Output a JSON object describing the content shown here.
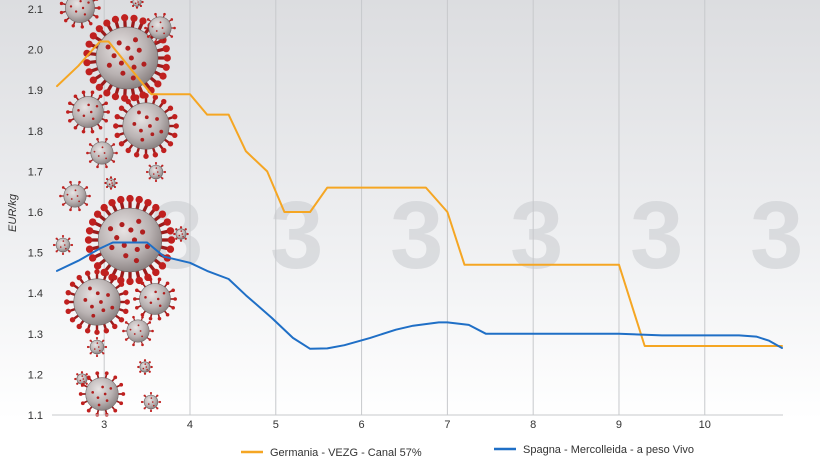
{
  "chart_data": {
    "type": "line",
    "title": "",
    "xlabel": "",
    "ylabel": "EUR/kg",
    "xlim": [
      2.45,
      10.9
    ],
    "ylim": [
      1.1,
      2.1
    ],
    "x_ticks": [
      3,
      4,
      5,
      6,
      7,
      8,
      9,
      10
    ],
    "y_ticks": [
      1.1,
      1.2,
      1.3,
      1.4,
      1.5,
      1.6,
      1.7,
      1.8,
      1.9,
      2.0,
      2.1
    ],
    "x_tick_labels": [
      "3",
      "4",
      "5",
      "6",
      "7",
      "8",
      "9",
      "10"
    ],
    "y_tick_labels": [
      "1.1",
      "1.2",
      "1.3",
      "1.4",
      "1.5",
      "1.6",
      "1.7",
      "1.8",
      "1.9",
      "2.0",
      "2.1"
    ],
    "grid": "vertical",
    "legend_position": "bottom",
    "background_watermark": "3",
    "series": [
      {
        "name": "Germania - VEZG - Canal 57%",
        "color": "#f5a623",
        "x": [
          2.45,
          2.7,
          2.95,
          3.05,
          3.55,
          3.7,
          4.0,
          4.2,
          4.45,
          4.65,
          4.9,
          5.1,
          5.4,
          5.6,
          6.0,
          6.3,
          6.75,
          7.0,
          7.2,
          8.0,
          9.0,
          9.3,
          10.0,
          10.5,
          10.9
        ],
        "y": [
          1.91,
          1.96,
          2.02,
          2.02,
          1.89,
          1.89,
          1.89,
          1.84,
          1.84,
          1.75,
          1.7,
          1.6,
          1.6,
          1.66,
          1.66,
          1.66,
          1.66,
          1.6,
          1.47,
          1.47,
          1.47,
          1.27,
          1.27,
          1.27,
          1.27
        ]
      },
      {
        "name": "Spagna - Mercolleida - a peso Vivo",
        "color": "#1f6fc6",
        "x": [
          2.45,
          2.7,
          2.95,
          3.1,
          3.5,
          3.7,
          4.0,
          4.2,
          4.45,
          4.65,
          4.95,
          5.2,
          5.4,
          5.6,
          5.8,
          6.1,
          6.4,
          6.6,
          6.9,
          7.0,
          7.25,
          7.45,
          8.0,
          9.0,
          9.5,
          10.0,
          10.4,
          10.6,
          10.75,
          10.9
        ],
        "y": [
          1.455,
          1.48,
          1.51,
          1.525,
          1.525,
          1.49,
          1.475,
          1.455,
          1.435,
          1.395,
          1.34,
          1.29,
          1.263,
          1.264,
          1.272,
          1.29,
          1.31,
          1.32,
          1.328,
          1.328,
          1.322,
          1.3,
          1.3,
          1.3,
          1.296,
          1.296,
          1.296,
          1.293,
          1.283,
          1.265
        ]
      }
    ]
  }
}
